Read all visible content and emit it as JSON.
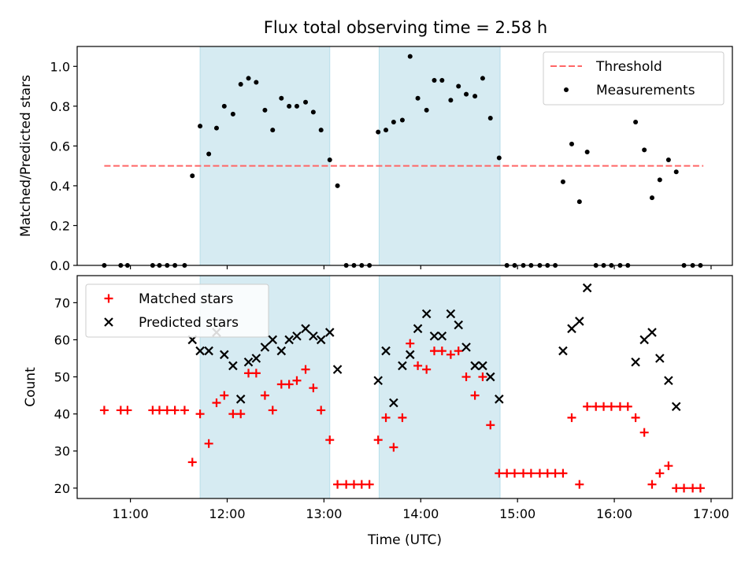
{
  "chart_data": [
    {
      "type": "scatter",
      "title": "Flux total observing time = 2.58 h",
      "ylabel": "Matched/Predicted stars",
      "xlabel": "",
      "x_unit": "hour-of-day (UTC)",
      "xlim": [
        10.45,
        17.22
      ],
      "ylim": [
        0,
        1.1
      ],
      "yticks": [
        0.0,
        0.2,
        0.4,
        0.6,
        0.8,
        1.0
      ],
      "ytick_labels": [
        "0.0",
        "0.2",
        "0.4",
        "0.6",
        "0.8",
        "1.0"
      ],
      "xticks": [
        11,
        12,
        13,
        14,
        15,
        16,
        17
      ],
      "xtick_labels": [
        "",
        "",
        "",
        "",
        "",
        "",
        ""
      ],
      "legend": "top-right",
      "shaded_intervals": [
        [
          11.72,
          13.06
        ],
        [
          13.57,
          14.82
        ]
      ],
      "shade_color": "#add8e6",
      "threshold": {
        "name": "Threshold",
        "y": 0.5,
        "x_range": [
          10.73,
          16.92
        ],
        "color": "#ff6666",
        "style": "dashed"
      },
      "series": [
        {
          "name": "Measurements",
          "marker": "dot",
          "color": "#000000",
          "points": [
            [
              10.73,
              0
            ],
            [
              10.9,
              0
            ],
            [
              10.97,
              0
            ],
            [
              11.23,
              0
            ],
            [
              11.3,
              0
            ],
            [
              11.38,
              0
            ],
            [
              11.46,
              0
            ],
            [
              11.56,
              0
            ],
            [
              11.64,
              0.45
            ],
            [
              11.72,
              0.7
            ],
            [
              11.81,
              0.56
            ],
            [
              11.89,
              0.69
            ],
            [
              11.97,
              0.8
            ],
            [
              12.06,
              0.76
            ],
            [
              12.14,
              0.91
            ],
            [
              12.22,
              0.94
            ],
            [
              12.3,
              0.92
            ],
            [
              12.39,
              0.78
            ],
            [
              12.47,
              0.68
            ],
            [
              12.56,
              0.84
            ],
            [
              12.64,
              0.8
            ],
            [
              12.72,
              0.8
            ],
            [
              12.81,
              0.82
            ],
            [
              12.89,
              0.77
            ],
            [
              12.97,
              0.68
            ],
            [
              13.06,
              0.53
            ],
            [
              13.14,
              0.4
            ],
            [
              13.23,
              0
            ],
            [
              13.31,
              0
            ],
            [
              13.39,
              0
            ],
            [
              13.47,
              0
            ],
            [
              13.56,
              0.67
            ],
            [
              13.64,
              0.68
            ],
            [
              13.72,
              0.72
            ],
            [
              13.81,
              0.73
            ],
            [
              13.89,
              1.05
            ],
            [
              13.97,
              0.84
            ],
            [
              14.06,
              0.78
            ],
            [
              14.14,
              0.93
            ],
            [
              14.22,
              0.93
            ],
            [
              14.31,
              0.83
            ],
            [
              14.39,
              0.9
            ],
            [
              14.47,
              0.86
            ],
            [
              14.56,
              0.85
            ],
            [
              14.64,
              0.94
            ],
            [
              14.72,
              0.74
            ],
            [
              14.81,
              0.54
            ],
            [
              14.89,
              0
            ],
            [
              14.97,
              0
            ],
            [
              15.06,
              0
            ],
            [
              15.14,
              0
            ],
            [
              15.23,
              0
            ],
            [
              15.31,
              0
            ],
            [
              15.39,
              0
            ],
            [
              15.47,
              0.42
            ],
            [
              15.56,
              0.61
            ],
            [
              15.64,
              0.32
            ],
            [
              15.72,
              0.57
            ],
            [
              15.81,
              0
            ],
            [
              15.89,
              0
            ],
            [
              15.97,
              0
            ],
            [
              16.06,
              0
            ],
            [
              16.14,
              0
            ],
            [
              16.22,
              0.72
            ],
            [
              16.31,
              0.58
            ],
            [
              16.39,
              0.34
            ],
            [
              16.47,
              0.43
            ],
            [
              16.56,
              0.53
            ],
            [
              16.64,
              0.47
            ],
            [
              16.72,
              0
            ],
            [
              16.81,
              0
            ],
            [
              16.89,
              0
            ]
          ]
        }
      ]
    },
    {
      "type": "scatter",
      "title": "",
      "ylabel": "Count",
      "xlabel": "Time (UTC)",
      "x_unit": "hour-of-day (UTC)",
      "xlim": [
        10.45,
        17.22
      ],
      "ylim": [
        17.2,
        77.3
      ],
      "yticks": [
        20,
        30,
        40,
        50,
        60,
        70
      ],
      "ytick_labels": [
        "20",
        "30",
        "40",
        "50",
        "60",
        "70"
      ],
      "xticks": [
        11,
        12,
        13,
        14,
        15,
        16,
        17
      ],
      "xtick_labels": [
        "11:00",
        "12:00",
        "13:00",
        "14:00",
        "15:00",
        "16:00",
        "17:00"
      ],
      "legend": "top-left",
      "shaded_intervals": [
        [
          11.72,
          13.06
        ],
        [
          13.57,
          14.82
        ]
      ],
      "shade_color": "#add8e6",
      "series": [
        {
          "name": "Matched stars",
          "marker": "plus",
          "color": "#ff0000",
          "points": [
            [
              10.73,
              41
            ],
            [
              10.9,
              41
            ],
            [
              10.97,
              41
            ],
            [
              11.23,
              41
            ],
            [
              11.3,
              41
            ],
            [
              11.38,
              41
            ],
            [
              11.46,
              41
            ],
            [
              11.56,
              41
            ],
            [
              11.64,
              27
            ],
            [
              11.72,
              40
            ],
            [
              11.81,
              32
            ],
            [
              11.89,
              43
            ],
            [
              11.97,
              45
            ],
            [
              12.06,
              40
            ],
            [
              12.14,
              40
            ],
            [
              12.22,
              51
            ],
            [
              12.3,
              51
            ],
            [
              12.39,
              45
            ],
            [
              12.47,
              41
            ],
            [
              12.56,
              48
            ],
            [
              12.64,
              48
            ],
            [
              12.72,
              49
            ],
            [
              12.81,
              52
            ],
            [
              12.89,
              47
            ],
            [
              12.97,
              41
            ],
            [
              13.06,
              33
            ],
            [
              13.14,
              21
            ],
            [
              13.23,
              21
            ],
            [
              13.31,
              21
            ],
            [
              13.39,
              21
            ],
            [
              13.47,
              21
            ],
            [
              13.56,
              33
            ],
            [
              13.64,
              39
            ],
            [
              13.72,
              31
            ],
            [
              13.81,
              39
            ],
            [
              13.89,
              59
            ],
            [
              13.97,
              53
            ],
            [
              14.06,
              52
            ],
            [
              14.14,
              57
            ],
            [
              14.22,
              57
            ],
            [
              14.31,
              56
            ],
            [
              14.39,
              57
            ],
            [
              14.47,
              50
            ],
            [
              14.56,
              45
            ],
            [
              14.64,
              50
            ],
            [
              14.72,
              37
            ],
            [
              14.81,
              24
            ],
            [
              14.89,
              24
            ],
            [
              14.97,
              24
            ],
            [
              15.06,
              24
            ],
            [
              15.14,
              24
            ],
            [
              15.23,
              24
            ],
            [
              15.31,
              24
            ],
            [
              15.39,
              24
            ],
            [
              15.47,
              24
            ],
            [
              15.56,
              39
            ],
            [
              15.64,
              21
            ],
            [
              15.72,
              42
            ],
            [
              15.81,
              42
            ],
            [
              15.89,
              42
            ],
            [
              15.97,
              42
            ],
            [
              16.06,
              42
            ],
            [
              16.14,
              42
            ],
            [
              16.22,
              39
            ],
            [
              16.31,
              35
            ],
            [
              16.39,
              21
            ],
            [
              16.47,
              24
            ],
            [
              16.56,
              26
            ],
            [
              16.64,
              20
            ],
            [
              16.72,
              20
            ],
            [
              16.81,
              20
            ],
            [
              16.89,
              20
            ]
          ]
        },
        {
          "name": "Predicted stars",
          "marker": "x",
          "color": "#000000",
          "points": [
            [
              11.64,
              60
            ],
            [
              11.72,
              57
            ],
            [
              11.81,
              57
            ],
            [
              11.89,
              62
            ],
            [
              11.97,
              56
            ],
            [
              12.06,
              53
            ],
            [
              12.14,
              44
            ],
            [
              12.22,
              54
            ],
            [
              12.3,
              55
            ],
            [
              12.39,
              58
            ],
            [
              12.47,
              60
            ],
            [
              12.56,
              57
            ],
            [
              12.64,
              60
            ],
            [
              12.72,
              61
            ],
            [
              12.81,
              63
            ],
            [
              12.89,
              61
            ],
            [
              12.97,
              60
            ],
            [
              13.06,
              62
            ],
            [
              13.14,
              52
            ],
            [
              13.56,
              49
            ],
            [
              13.64,
              57
            ],
            [
              13.72,
              43
            ],
            [
              13.81,
              53
            ],
            [
              13.89,
              56
            ],
            [
              13.97,
              63
            ],
            [
              14.06,
              67
            ],
            [
              14.14,
              61
            ],
            [
              14.22,
              61
            ],
            [
              14.31,
              67
            ],
            [
              14.39,
              64
            ],
            [
              14.47,
              58
            ],
            [
              14.56,
              53
            ],
            [
              14.64,
              53
            ],
            [
              14.72,
              50
            ],
            [
              14.81,
              44
            ],
            [
              15.47,
              57
            ],
            [
              15.56,
              63
            ],
            [
              15.64,
              65
            ],
            [
              15.72,
              74
            ],
            [
              16.22,
              54
            ],
            [
              16.31,
              60
            ],
            [
              16.39,
              62
            ],
            [
              16.47,
              55
            ],
            [
              16.56,
              49
            ],
            [
              16.64,
              42
            ]
          ]
        }
      ]
    }
  ]
}
